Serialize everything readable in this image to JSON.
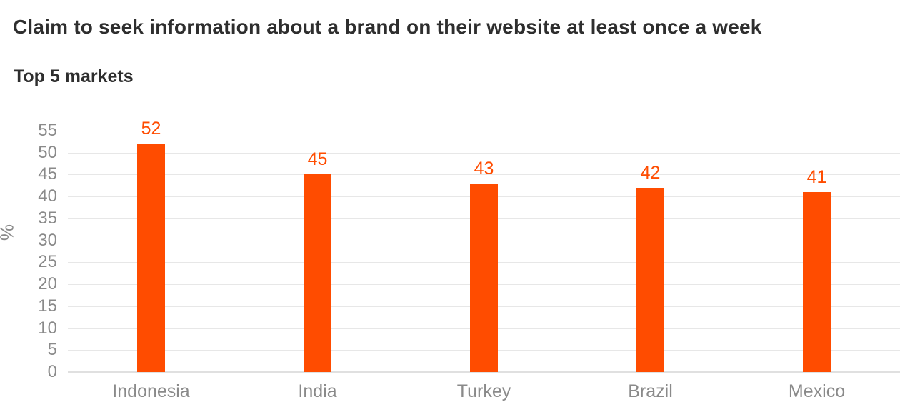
{
  "chart_data": {
    "type": "bar",
    "title": "Claim to seek information about a brand on their website at least once a week",
    "subtitle": "Top 5 markets",
    "categories": [
      "Indonesia",
      "India",
      "Turkey",
      "Brazil",
      "Mexico"
    ],
    "values": [
      52,
      45,
      43,
      42,
      41
    ],
    "xlabel": "",
    "ylabel": "%",
    "ylim": [
      0,
      55
    ],
    "ytick_step": 5,
    "grid": true,
    "legend": "none",
    "data_labels": true,
    "bar_color": "#ff4c00",
    "value_label_color": "#ff4c00",
    "axis_text_color": "#8a8a8a",
    "title_color": "#2e2e2e",
    "gridline_color": "#e7e7e7"
  }
}
